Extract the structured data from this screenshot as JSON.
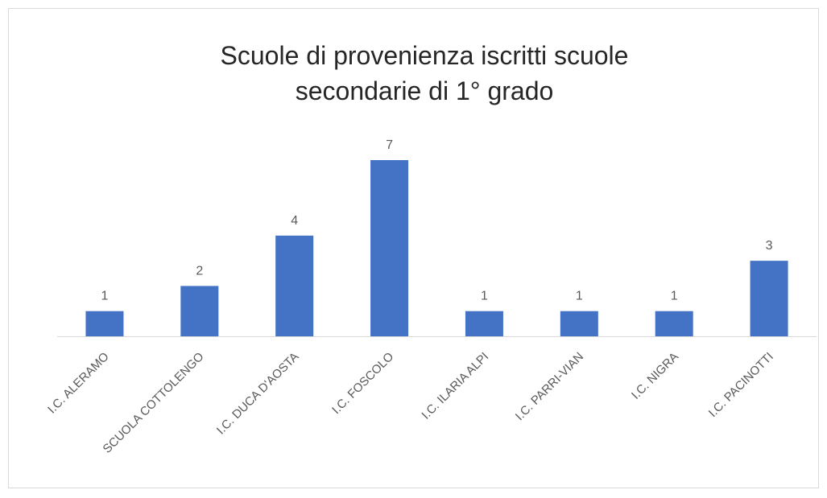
{
  "chart_data": {
    "type": "bar",
    "title": [
      "Scuole di provenienza iscritti scuole",
      "secondarie di 1° grado"
    ],
    "categories": [
      "I.C. ALERAMO",
      "SCUOLA COTTOLENGO",
      "I.C. DUCA D'AOSTA",
      "I.C. FOSCOLO",
      "I.C. ILARIA ALPI",
      "I.C. PARRI-VIAN",
      "I.C. NIGRA",
      "I.C. PACINOTTI"
    ],
    "values": [
      1,
      2,
      4,
      7,
      1,
      1,
      1,
      3
    ],
    "color": "#4472c4"
  }
}
